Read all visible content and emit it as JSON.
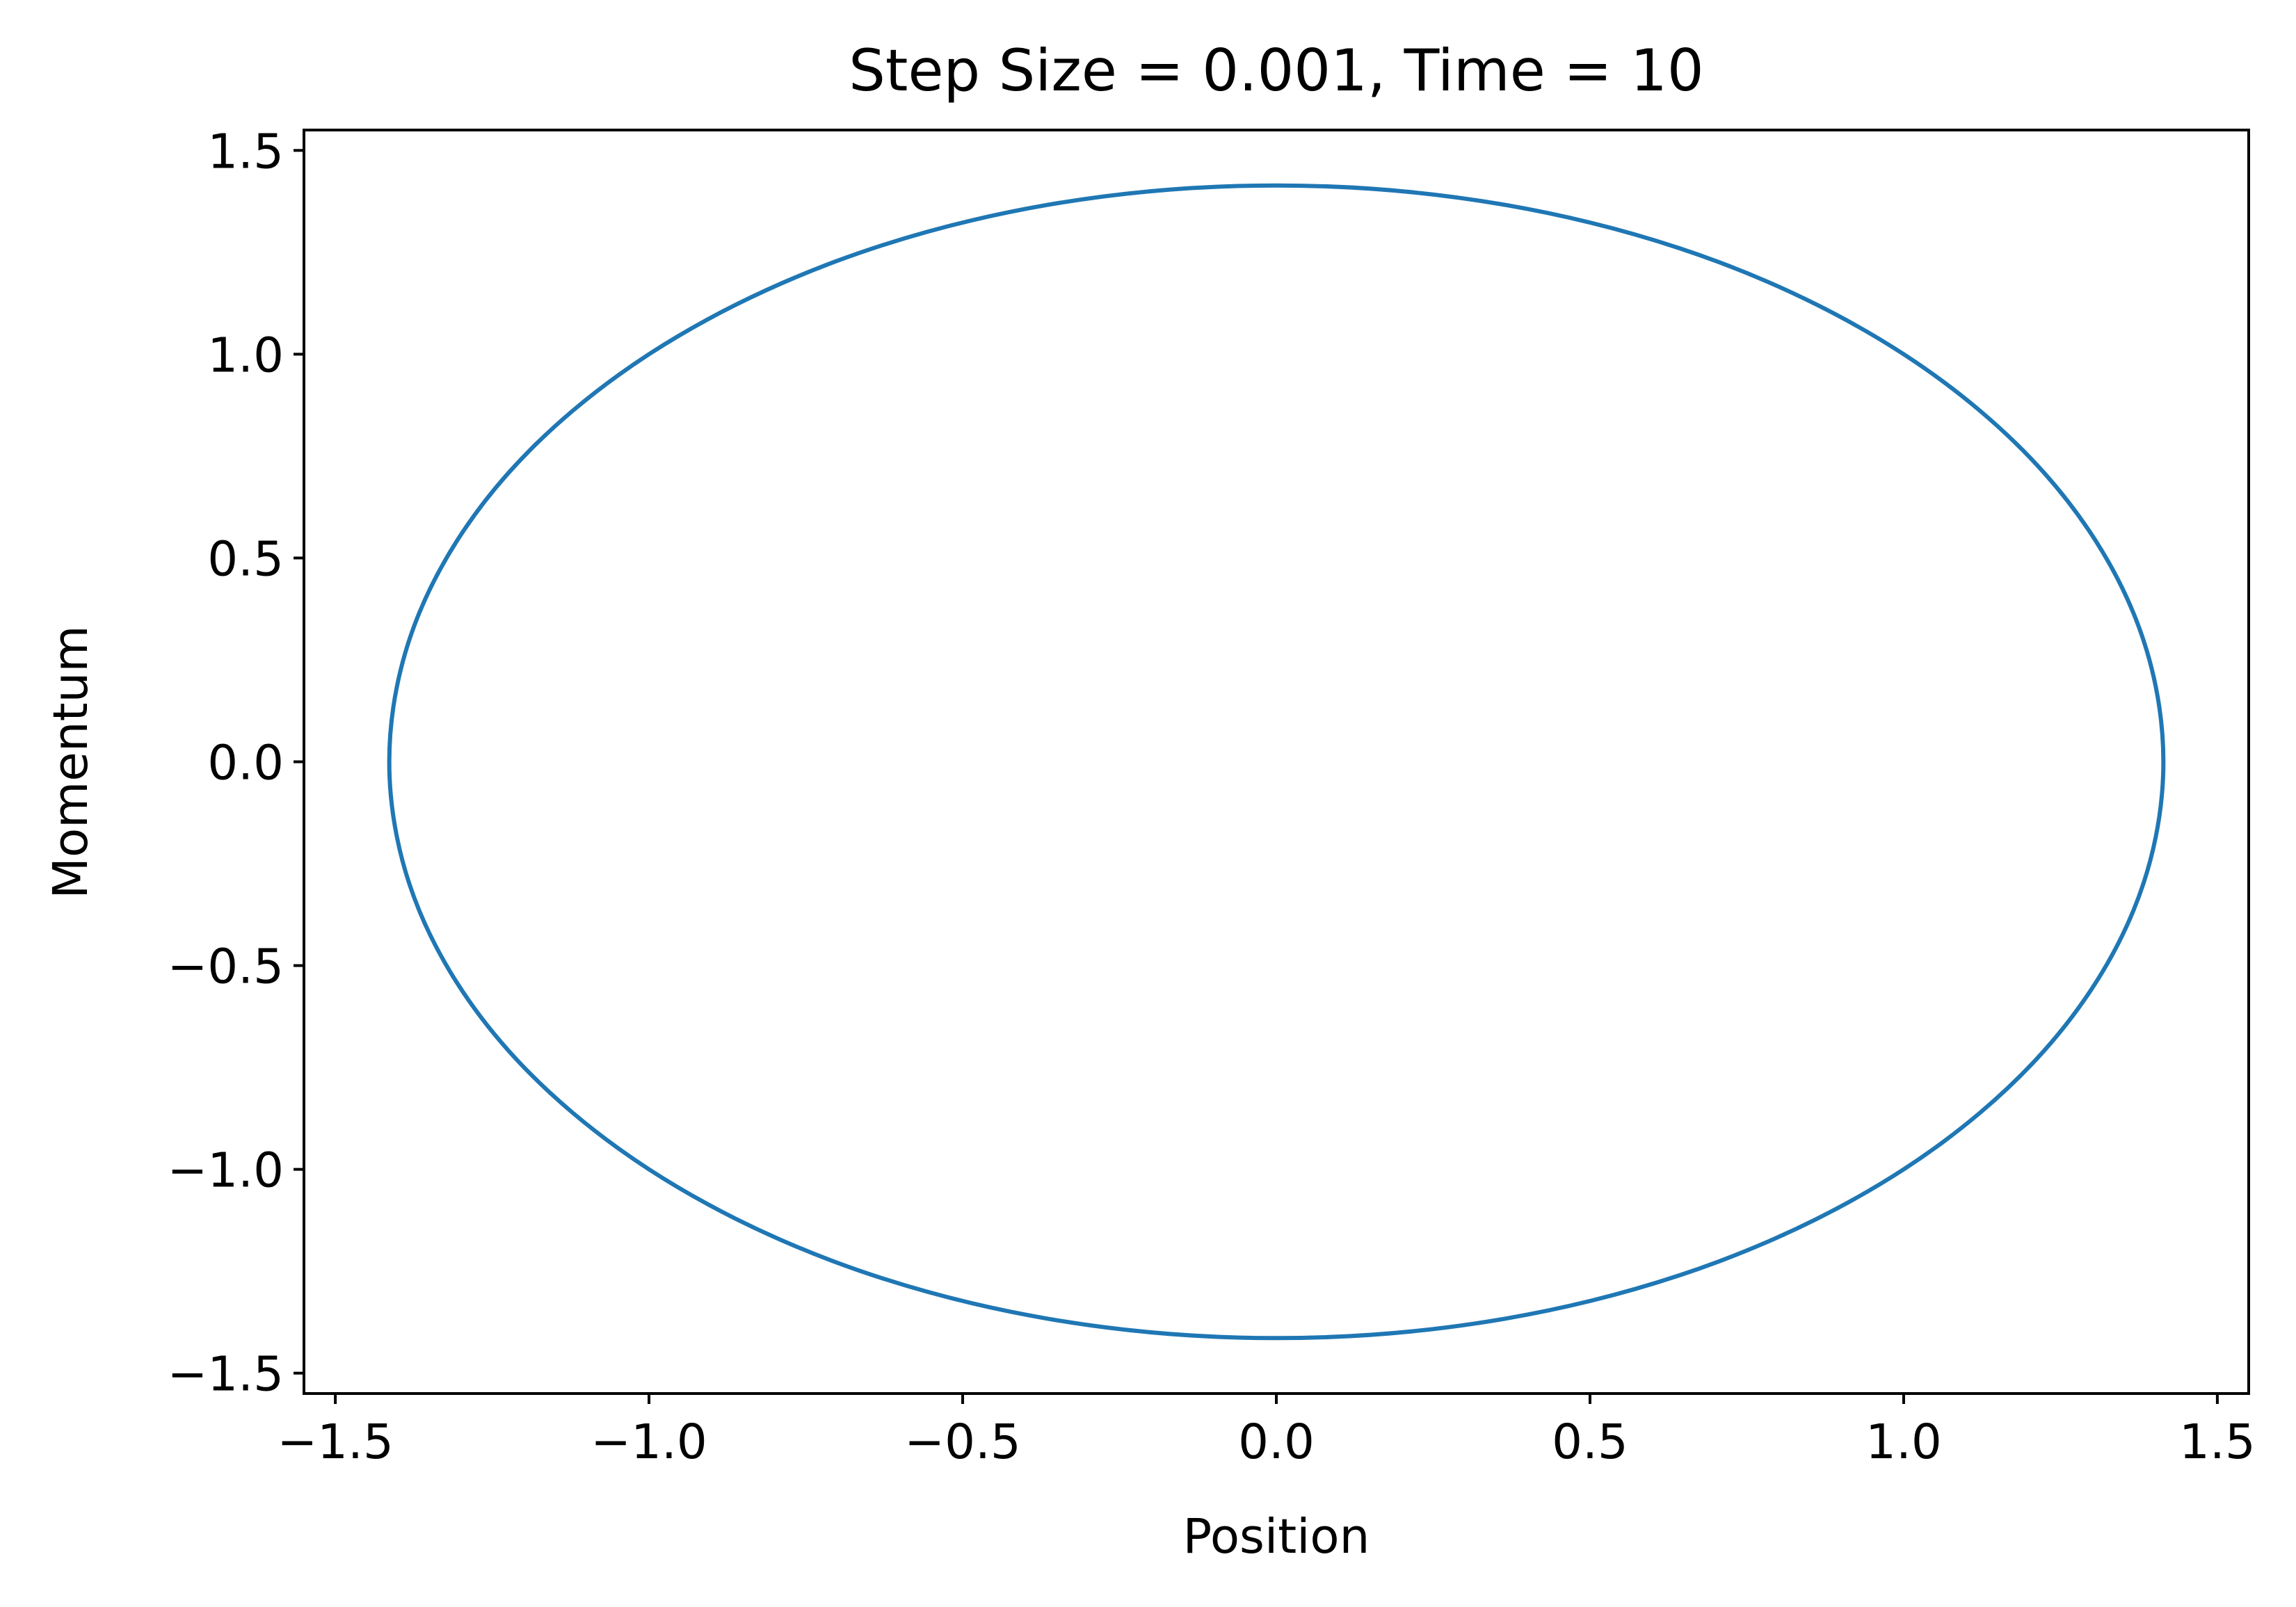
{
  "chart_data": {
    "type": "line",
    "title": "Step Size = 0.001, Time = 10",
    "xlabel": "Position",
    "ylabel": "Momentum",
    "xlim": [
      -1.55,
      1.55
    ],
    "ylim": [
      -1.55,
      1.55
    ],
    "xticks": [
      -1.5,
      -1.0,
      -0.5,
      0.0,
      0.5,
      1.0,
      1.5
    ],
    "yticks": [
      -1.5,
      -1.0,
      -0.5,
      0.0,
      0.5,
      1.0,
      1.5
    ],
    "xtick_labels": [
      "−1.5",
      "−1.0",
      "−0.5",
      "0.0",
      "0.5",
      "1.0",
      "1.5"
    ],
    "ytick_labels": [
      "−1.5",
      "−1.0",
      "−0.5",
      "0.0",
      "0.5",
      "1.0",
      "1.5"
    ],
    "grid": false,
    "series": [
      {
        "color": "#1f77b4",
        "x": [
          1.414,
          1.366,
          1.225,
          1.0,
          0.707,
          0.366,
          0.0,
          -0.366,
          -0.707,
          -1.0,
          -1.225,
          -1.366,
          -1.414,
          -1.366,
          -1.225,
          -1.0,
          -0.707,
          -0.366,
          0.0,
          0.366,
          0.707,
          1.0,
          1.225,
          1.366,
          1.414
        ],
        "y": [
          0.0,
          0.366,
          0.707,
          1.0,
          1.225,
          1.366,
          1.414,
          1.366,
          1.225,
          1.0,
          0.707,
          0.366,
          0.0,
          -0.366,
          -0.707,
          -1.0,
          -1.225,
          -1.366,
          -1.414,
          -1.366,
          -1.225,
          -1.0,
          -0.707,
          -0.366,
          0.0
        ]
      }
    ]
  }
}
